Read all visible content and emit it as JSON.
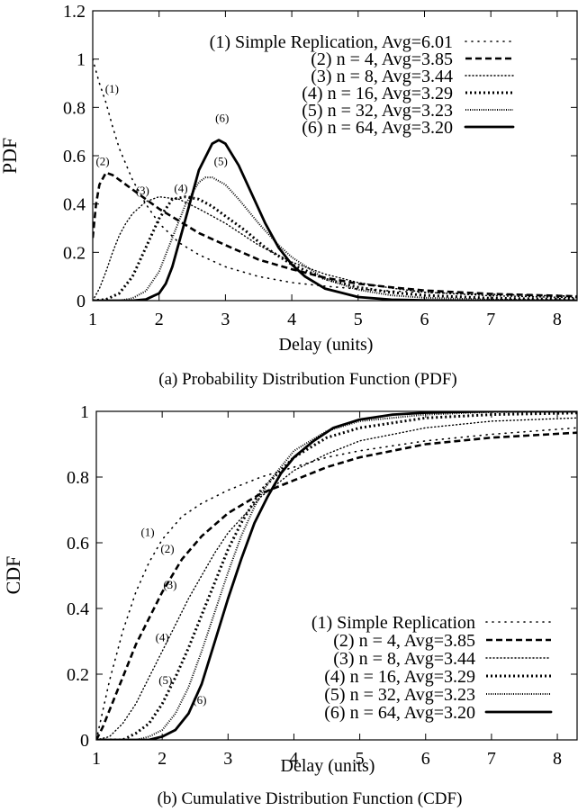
{
  "chart_data": [
    {
      "type": "line",
      "title": "",
      "caption": "(a) Probability Distribution Function (PDF)",
      "xlabel": "Delay (units)",
      "ylabel": "PDF",
      "xlim": [
        1,
        8.3
      ],
      "ylim": [
        0,
        1.2
      ],
      "xticks": [
        "1",
        "2",
        "3",
        "4",
        "5",
        "6",
        "7",
        "8"
      ],
      "yticks": [
        "0",
        "0.2",
        "0.4",
        "0.6",
        "0.8",
        "1",
        "1.2"
      ],
      "grid": false,
      "legend_position": "top-right",
      "series": [
        {
          "name": "(1) Simple Replication, Avg=6.01",
          "label": "(1)",
          "style": "dotted-sparse",
          "x": [
            1.0,
            1.1,
            1.2,
            1.3,
            1.4,
            1.6,
            1.8,
            2.0,
            2.3,
            2.6,
            3.0,
            3.5,
            4.0,
            4.5,
            5.0,
            5.5,
            6.0,
            7.0,
            8.3
          ],
          "y": [
            1.0,
            0.9,
            0.82,
            0.72,
            0.63,
            0.5,
            0.4,
            0.32,
            0.24,
            0.19,
            0.14,
            0.1,
            0.075,
            0.06,
            0.048,
            0.04,
            0.034,
            0.026,
            0.018
          ]
        },
        {
          "name": "(2) n =   4, Avg=3.85",
          "label": "(2)",
          "style": "dashed",
          "x": [
            1.0,
            1.05,
            1.1,
            1.2,
            1.3,
            1.4,
            1.6,
            1.8,
            2.0,
            2.3,
            2.6,
            3.0,
            3.5,
            4.0,
            4.5,
            5.0,
            5.5,
            6.0,
            7.0,
            8.3
          ],
          "y": [
            0.26,
            0.4,
            0.48,
            0.53,
            0.52,
            0.5,
            0.46,
            0.42,
            0.38,
            0.33,
            0.28,
            0.23,
            0.17,
            0.13,
            0.095,
            0.07,
            0.055,
            0.042,
            0.028,
            0.018
          ]
        },
        {
          "name": "(3) n =   8, Avg=3.44",
          "label": "(3)",
          "style": "dotted",
          "x": [
            1.0,
            1.1,
            1.2,
            1.3,
            1.4,
            1.5,
            1.6,
            1.8,
            2.0,
            2.3,
            2.6,
            3.0,
            3.5,
            4.0,
            4.5,
            5.0,
            5.5,
            6.0,
            7.0,
            8.3
          ],
          "y": [
            0.0,
            0.05,
            0.12,
            0.2,
            0.27,
            0.32,
            0.36,
            0.41,
            0.43,
            0.42,
            0.38,
            0.32,
            0.23,
            0.16,
            0.11,
            0.075,
            0.052,
            0.035,
            0.02,
            0.012
          ]
        },
        {
          "name": "(4) n = 16, Avg=3.29",
          "label": "(4)",
          "style": "dotted-bold",
          "x": [
            1.0,
            1.2,
            1.4,
            1.6,
            1.8,
            2.0,
            2.2,
            2.4,
            2.6,
            2.8,
            3.0,
            3.3,
            3.6,
            4.0,
            4.5,
            5.0,
            5.5,
            6.0,
            7.0,
            8.3
          ],
          "y": [
            0.0,
            0.005,
            0.03,
            0.1,
            0.22,
            0.34,
            0.42,
            0.43,
            0.42,
            0.39,
            0.35,
            0.29,
            0.22,
            0.15,
            0.09,
            0.055,
            0.034,
            0.022,
            0.01,
            0.005
          ]
        },
        {
          "name": "(5) n = 32, Avg=3.23",
          "label": "(5)",
          "style": "dotted-dense",
          "x": [
            1.0,
            1.4,
            1.6,
            1.8,
            2.0,
            2.2,
            2.4,
            2.6,
            2.7,
            2.8,
            3.0,
            3.2,
            3.5,
            3.8,
            4.0,
            4.5,
            5.0,
            5.5,
            6.0,
            7.0,
            8.3
          ],
          "y": [
            0.0,
            0.0,
            0.01,
            0.04,
            0.12,
            0.26,
            0.4,
            0.49,
            0.51,
            0.51,
            0.48,
            0.42,
            0.32,
            0.23,
            0.18,
            0.09,
            0.045,
            0.022,
            0.012,
            0.004,
            0.002
          ]
        },
        {
          "name": "(6) n = 64, Avg=3.20",
          "label": "(6)",
          "style": "solid",
          "x": [
            1.0,
            1.6,
            1.8,
            2.0,
            2.1,
            2.2,
            2.4,
            2.6,
            2.8,
            2.9,
            3.0,
            3.2,
            3.4,
            3.6,
            3.8,
            4.0,
            4.2,
            4.5,
            5.0,
            5.5,
            6.0,
            7.0,
            8.3
          ],
          "y": [
            0.0,
            0.0,
            0.005,
            0.03,
            0.07,
            0.14,
            0.34,
            0.54,
            0.65,
            0.665,
            0.65,
            0.56,
            0.44,
            0.32,
            0.22,
            0.15,
            0.1,
            0.05,
            0.015,
            0.004,
            0.001,
            0.0,
            0.0
          ]
        }
      ]
    },
    {
      "type": "line",
      "title": "",
      "caption": "(b) Cumulative Distribution Function (CDF)",
      "xlabel": "Delay (units)",
      "ylabel": "CDF",
      "xlim": [
        1,
        8.3
      ],
      "ylim": [
        0,
        1
      ],
      "xticks": [
        "1",
        "2",
        "3",
        "4",
        "5",
        "6",
        "7",
        "8"
      ],
      "yticks": [
        "0",
        "0.2",
        "0.4",
        "0.6",
        "0.8",
        "1"
      ],
      "grid": false,
      "legend_position": "bottom-right",
      "series": [
        {
          "name": "(1) Simple Replication",
          "label": "(1)",
          "style": "dotted-sparse",
          "x": [
            1.0,
            1.2,
            1.4,
            1.6,
            1.8,
            2.0,
            2.3,
            2.6,
            3.0,
            3.5,
            4.0,
            4.5,
            5.0,
            6.0,
            7.0,
            8.3
          ],
          "y": [
            0.0,
            0.18,
            0.33,
            0.45,
            0.54,
            0.61,
            0.68,
            0.72,
            0.76,
            0.8,
            0.83,
            0.86,
            0.88,
            0.91,
            0.93,
            0.95
          ]
        },
        {
          "name": "(2) n =   4, Avg=3.85",
          "label": "(2)",
          "style": "dashed",
          "x": [
            1.0,
            1.1,
            1.2,
            1.4,
            1.6,
            1.8,
            2.0,
            2.3,
            2.6,
            3.0,
            3.5,
            4.0,
            4.5,
            5.0,
            6.0,
            7.0,
            8.3
          ],
          "y": [
            0.0,
            0.04,
            0.09,
            0.19,
            0.29,
            0.37,
            0.45,
            0.55,
            0.62,
            0.69,
            0.75,
            0.79,
            0.83,
            0.86,
            0.9,
            0.92,
            0.935
          ]
        },
        {
          "name": "(3) n =   8, Avg=3.44",
          "label": "(3)",
          "style": "dotted",
          "x": [
            1.0,
            1.2,
            1.4,
            1.6,
            1.8,
            2.0,
            2.2,
            2.4,
            2.6,
            2.8,
            3.0,
            3.5,
            4.0,
            4.5,
            5.0,
            6.0,
            7.0,
            8.3
          ],
          "y": [
            0.0,
            0.01,
            0.05,
            0.11,
            0.19,
            0.27,
            0.35,
            0.43,
            0.5,
            0.57,
            0.63,
            0.74,
            0.82,
            0.87,
            0.91,
            0.95,
            0.97,
            0.98
          ]
        },
        {
          "name": "(4) n = 16, Avg=3.29",
          "label": "(4)",
          "style": "dotted-bold",
          "x": [
            1.0,
            1.4,
            1.6,
            1.8,
            2.0,
            2.2,
            2.4,
            2.6,
            2.8,
            3.0,
            3.2,
            3.5,
            4.0,
            4.5,
            5.0,
            6.0,
            7.0,
            8.3
          ],
          "y": [
            0.0,
            0.0,
            0.02,
            0.05,
            0.11,
            0.19,
            0.28,
            0.38,
            0.48,
            0.58,
            0.66,
            0.76,
            0.86,
            0.92,
            0.95,
            0.98,
            0.99,
            0.995
          ]
        },
        {
          "name": "(5) n = 32, Avg=3.23",
          "label": "(5)",
          "style": "dotted-dense",
          "x": [
            1.0,
            1.6,
            1.8,
            2.0,
            2.2,
            2.4,
            2.6,
            2.8,
            3.0,
            3.2,
            3.4,
            3.6,
            4.0,
            4.5,
            5.0,
            6.0,
            7.0,
            8.3
          ],
          "y": [
            0.0,
            0.0,
            0.01,
            0.03,
            0.08,
            0.16,
            0.27,
            0.39,
            0.51,
            0.62,
            0.71,
            0.78,
            0.88,
            0.94,
            0.97,
            0.99,
            0.998,
            1.0
          ]
        },
        {
          "name": "(6) n = 64, Avg=3.20",
          "label": "(6)",
          "style": "solid",
          "x": [
            1.0,
            1.8,
            2.0,
            2.2,
            2.4,
            2.6,
            2.8,
            3.0,
            3.2,
            3.4,
            3.6,
            3.8,
            4.0,
            4.3,
            4.6,
            5.0,
            5.5,
            6.0,
            7.0,
            8.3
          ],
          "y": [
            0.0,
            0.0,
            0.01,
            0.03,
            0.08,
            0.17,
            0.3,
            0.43,
            0.55,
            0.66,
            0.74,
            0.81,
            0.86,
            0.91,
            0.95,
            0.975,
            0.99,
            0.996,
            1.0,
            1.0
          ]
        }
      ]
    }
  ]
}
